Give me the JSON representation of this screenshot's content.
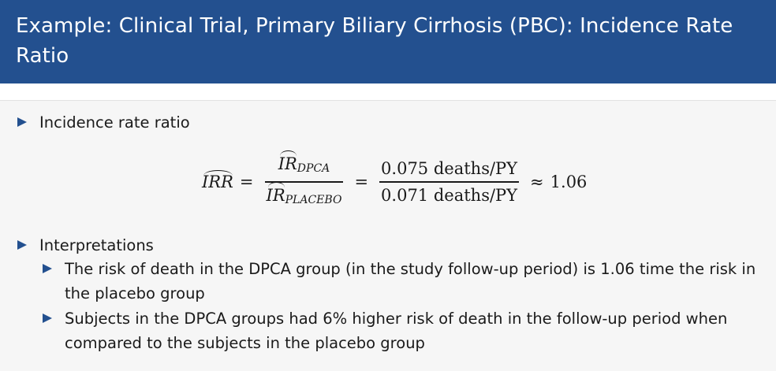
{
  "slide": {
    "title": "Example: Clinical Trial, Primary Biliary Cirrhosis (PBC): Incidence Rate Ratio"
  },
  "bullets": {
    "b1": "Incidence rate ratio",
    "b2": "Interpretations",
    "sub1": "The risk of death in the DPCA group (in the study follow-up period) is 1.06 time the risk in the placebo group",
    "sub2": "Subjects in the DPCA groups had 6% higher risk of death in the follow-up period when compared to the subjects in the placebo group"
  },
  "formula": {
    "lhs": "IRR",
    "ir": "IR",
    "num_sub": "DPCA",
    "den_sub": "PLACEBO",
    "eq": "=",
    "num_value": "0.075 deaths/PY",
    "den_value": "0.071 deaths/PY",
    "approx": "≈",
    "result": "1.06"
  },
  "colors": {
    "title_bar": "#23508f",
    "bullet_marker": "#23508f",
    "content_bg": "#f6f6f6"
  }
}
